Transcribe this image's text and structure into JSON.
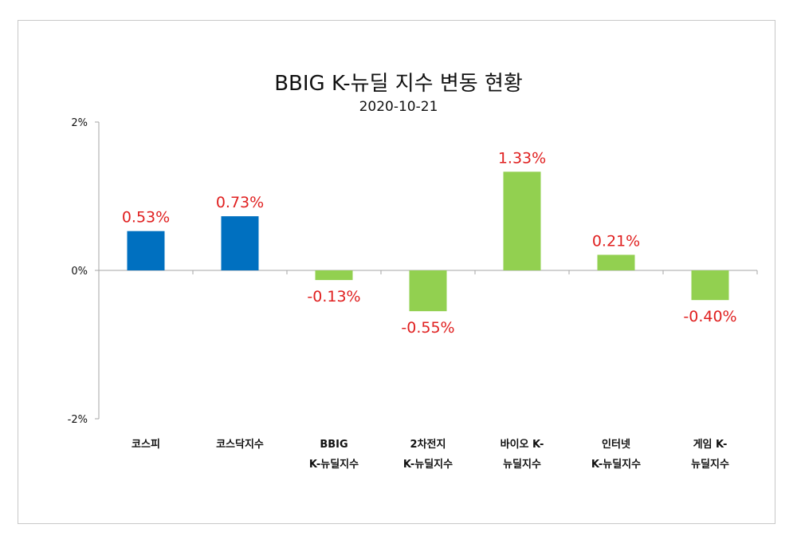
{
  "chart_data": {
    "type": "bar",
    "title": "BBIG K-뉴딜 지수 변동 현황",
    "subtitle": "2020-10-21",
    "xlabel": "",
    "ylabel": "",
    "ylim": [
      -2,
      2
    ],
    "yticks": [
      {
        "value": 2,
        "label": "2%"
      },
      {
        "value": 0,
        "label": "0%"
      },
      {
        "value": -2,
        "label": "-2%"
      }
    ],
    "grid": false,
    "categories": [
      [
        "코스피"
      ],
      [
        "코스닥지수"
      ],
      [
        "BBIG",
        "K-뉴딜지수"
      ],
      [
        "2차전지",
        "K-뉴딜지수"
      ],
      [
        "바이오 K-",
        "뉴딜지수"
      ],
      [
        "인터넷",
        "K-뉴딜지수"
      ],
      [
        "게임 K-",
        "뉴딜지수"
      ]
    ],
    "values": [
      0.53,
      0.73,
      -0.13,
      -0.55,
      1.33,
      0.21,
      -0.4
    ],
    "data_labels": [
      "0.53%",
      "0.73%",
      "-0.13%",
      "-0.55%",
      "1.33%",
      "0.21%",
      "-0.40%"
    ],
    "colors": [
      "#0070c0",
      "#0070c0",
      "#92d050",
      "#92d050",
      "#92d050",
      "#92d050",
      "#92d050"
    ],
    "label_color": "#e02020",
    "axis_color": "#a6a6a6"
  }
}
